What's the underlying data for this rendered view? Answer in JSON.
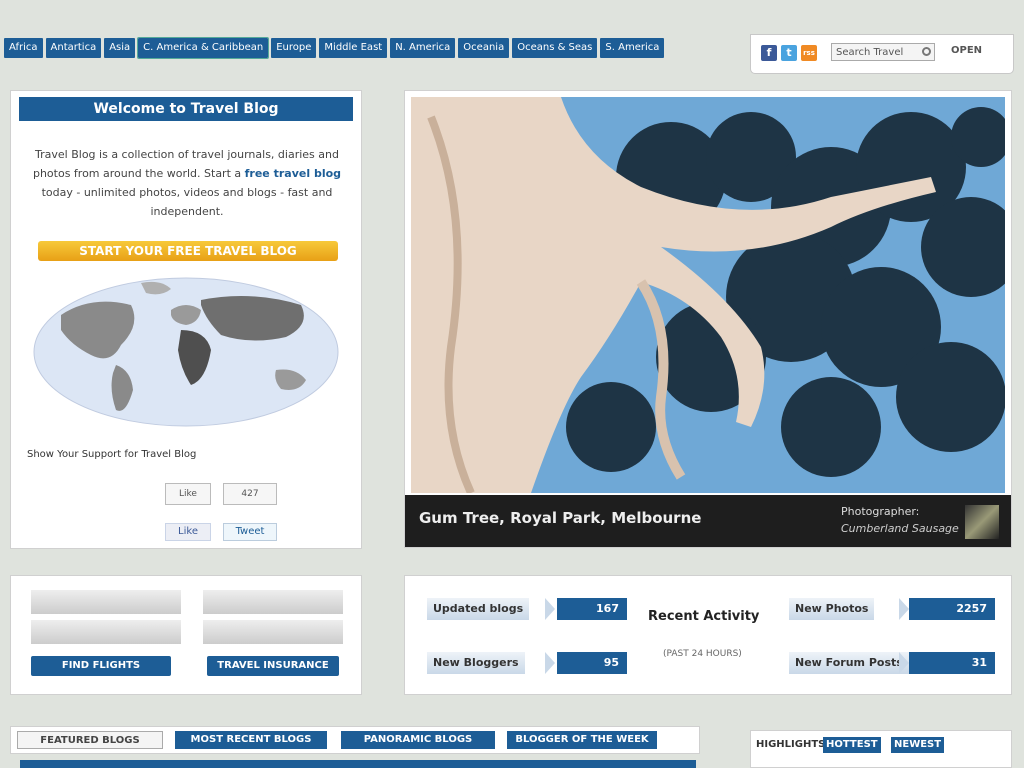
{
  "nav": {
    "regions": [
      "Africa",
      "Antartica",
      "Asia",
      "C. America & Caribbean",
      "Europe",
      "Middle East",
      "N. America",
      "Oceania",
      "Oceans & Seas",
      "S. America"
    ],
    "active_region": "C. America & Caribbean"
  },
  "tools": {
    "facebook_icon": "f",
    "twitter_icon": "t",
    "rss_icon": "rss",
    "search_placeholder": "Search Travel",
    "open_label": "OPEN"
  },
  "welcome": {
    "title": "Welcome to Travel Blog",
    "text_before": "Travel Blog is a collection of travel journals, diaries and photos from around the world. Start a ",
    "text_link": "free travel blog",
    "text_after": " today - unlimited photos, videos and blogs - fast and independent.",
    "cta_label": "START YOUR FREE TRAVEL BLOG",
    "support_text": "Show Your Support for Travel Blog",
    "like_count": "427",
    "like_label": "Like",
    "fb_like_label": "Like",
    "tweet_label": "Tweet"
  },
  "featured_photo": {
    "title": "Gum Tree, Royal Park, Melbourne",
    "photographer_label": "Photographer:",
    "photographer_name": "Cumberland Sausage"
  },
  "flights": {
    "find_flights_label": "FIND FLIGHTS",
    "travel_insurance_label": "TRAVEL INSURANCE"
  },
  "stats": {
    "recent_activity_heading": "Recent Activity",
    "past_24_label": "(PAST 24 HOURS)",
    "items": [
      {
        "label": "Updated blogs",
        "value": "167"
      },
      {
        "label": "New Photos",
        "value": "2257"
      },
      {
        "label": "New Bloggers",
        "value": "95"
      },
      {
        "label": "New Forum Posts",
        "value": "31"
      }
    ]
  },
  "blog_tabs": [
    "FEATURED BLOGS",
    "MOST RECENT BLOGS",
    "PANORAMIC BLOGS",
    "BLOGGER OF THE WEEK"
  ],
  "highlight_tabs": [
    "HIGHLIGHTS",
    "HOTTEST",
    "NEWEST"
  ],
  "colors": {
    "brand_blue": "#1d5d96",
    "cta_orange": "#f0b428"
  }
}
